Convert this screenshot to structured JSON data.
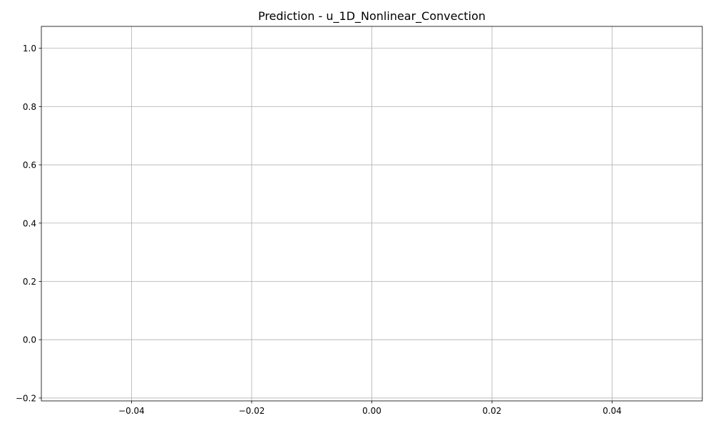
{
  "chart_data": {
    "type": "line",
    "title": "Prediction - u_1D_Nonlinear_Convection",
    "xlabel": "",
    "ylabel": "",
    "xlim": [
      -0.055,
      0.055
    ],
    "ylim": [
      -0.21,
      1.075
    ],
    "x_ticks": [
      -0.04,
      -0.02,
      0.0,
      0.02,
      0.04
    ],
    "x_tick_labels": [
      "−0.04",
      "−0.02",
      "0.00",
      "0.02",
      "0.04"
    ],
    "y_ticks": [
      -0.2,
      0.0,
      0.2,
      0.4,
      0.6,
      0.8,
      1.0
    ],
    "y_tick_labels": [
      "−0.2",
      "0.0",
      "0.2",
      "0.4",
      "0.6",
      "0.8",
      "1.0"
    ],
    "grid": true,
    "series": []
  },
  "colors": {
    "background": "#ffffff",
    "axes_frame": "#000000",
    "grid": "#b0b0b0",
    "text": "#000000"
  }
}
